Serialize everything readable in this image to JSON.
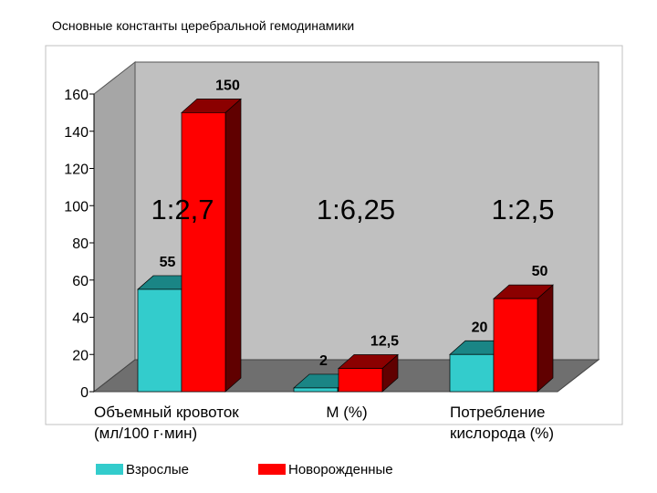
{
  "title": "Основные константы церебральной гемодинамики",
  "chart_data": {
    "type": "bar",
    "categories": [
      "Объемный кровоток\n(мл/100 г·мин)",
      "М (%)",
      "Потребление\nкислорода (%)"
    ],
    "series": [
      {
        "name": "Взрослые",
        "color": "#33cccc",
        "values": [
          55,
          2,
          20
        ],
        "labels": [
          "55",
          "2",
          "20"
        ]
      },
      {
        "name": "Новорожденные",
        "color": "#ff0000",
        "values": [
          150,
          12.5,
          50
        ],
        "labels": [
          "150",
          "12,5",
          "50"
        ]
      }
    ],
    "ratios": [
      "1:2,7",
      "1:6,25",
      "1:2,5"
    ],
    "ylim": [
      0,
      160
    ],
    "yticks": [
      0,
      20,
      40,
      60,
      80,
      100,
      120,
      140,
      160
    ],
    "grid": false,
    "legend_position": "bottom-left"
  }
}
